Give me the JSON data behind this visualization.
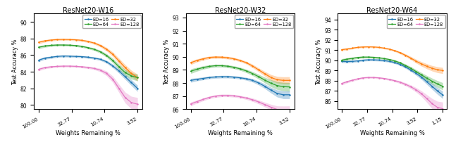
{
  "panels": [
    {
      "title": "ResNet20-W16",
      "ylabel": "Test Accuracy %",
      "xlabel": "Weights Remaining %",
      "xtick_positions": [
        0,
        1,
        2,
        3
      ],
      "xtick_labels": [
        "100.00",
        "32.77",
        "10.74",
        "3.52"
      ],
      "ylim": [
        79.5,
        91.0
      ],
      "yticks": [
        80,
        82,
        84,
        86,
        88,
        90
      ],
      "series": [
        {
          "label": "ED=16",
          "color": "#1f77b4",
          "mean": [
            85.4,
            85.65,
            85.75,
            85.85,
            85.9,
            85.88,
            85.85,
            85.82,
            85.75,
            85.65,
            85.5,
            85.2,
            84.7,
            84.1,
            83.4,
            82.7,
            82.0
          ],
          "std": [
            0.18,
            0.15,
            0.14,
            0.13,
            0.13,
            0.13,
            0.13,
            0.13,
            0.13,
            0.14,
            0.15,
            0.18,
            0.22,
            0.27,
            0.32,
            0.36,
            0.38
          ]
        },
        {
          "label": "ED=32",
          "color": "#ff7f0e",
          "mean": [
            87.55,
            87.72,
            87.82,
            87.88,
            87.9,
            87.88,
            87.85,
            87.78,
            87.65,
            87.45,
            87.15,
            86.7,
            86.1,
            85.3,
            84.5,
            83.8,
            83.3
          ],
          "std": [
            0.18,
            0.15,
            0.13,
            0.12,
            0.12,
            0.12,
            0.12,
            0.13,
            0.14,
            0.15,
            0.18,
            0.22,
            0.27,
            0.32,
            0.36,
            0.38,
            0.4
          ]
        },
        {
          "label": "ED=64",
          "color": "#2ca02c",
          "mean": [
            86.95,
            87.1,
            87.18,
            87.22,
            87.22,
            87.2,
            87.15,
            87.05,
            86.9,
            86.7,
            86.4,
            85.95,
            85.35,
            84.6,
            83.9,
            83.5,
            83.3
          ],
          "std": [
            0.18,
            0.15,
            0.13,
            0.12,
            0.12,
            0.12,
            0.12,
            0.13,
            0.14,
            0.15,
            0.18,
            0.22,
            0.27,
            0.32,
            0.36,
            0.38,
            0.4
          ]
        },
        {
          "label": "ED=128",
          "color": "#e377c2",
          "mean": [
            84.3,
            84.5,
            84.6,
            84.65,
            84.68,
            84.68,
            84.65,
            84.6,
            84.52,
            84.4,
            84.2,
            83.8,
            83.1,
            82.0,
            80.9,
            80.3,
            80.1
          ],
          "std": [
            0.18,
            0.15,
            0.13,
            0.12,
            0.12,
            0.12,
            0.12,
            0.13,
            0.14,
            0.15,
            0.2,
            0.28,
            0.38,
            0.5,
            0.65,
            0.75,
            0.8
          ]
        }
      ]
    },
    {
      "title": "ResNet20-W32",
      "ylabel": "Test Accuracy %",
      "xlabel": "Weights Remaining %",
      "xtick_positions": [
        0,
        1,
        2,
        3
      ],
      "xtick_labels": [
        "100.00",
        "32.77",
        "10.74",
        "3.52"
      ],
      "ylim": [
        86.0,
        93.3
      ],
      "yticks": [
        86,
        87,
        88,
        89,
        90,
        91,
        92,
        93
      ],
      "series": [
        {
          "label": "ED=16",
          "color": "#1f77b4",
          "mean": [
            88.2,
            88.28,
            88.35,
            88.42,
            88.46,
            88.48,
            88.48,
            88.45,
            88.4,
            88.32,
            88.2,
            88.0,
            87.75,
            87.45,
            87.2,
            87.1,
            87.1
          ],
          "std": [
            0.15,
            0.12,
            0.11,
            0.1,
            0.1,
            0.1,
            0.1,
            0.1,
            0.1,
            0.11,
            0.13,
            0.15,
            0.18,
            0.22,
            0.27,
            0.3,
            0.3
          ]
        },
        {
          "label": "ED=32",
          "color": "#ff7f0e",
          "mean": [
            89.55,
            89.72,
            89.85,
            89.95,
            89.98,
            89.97,
            89.93,
            89.85,
            89.72,
            89.55,
            89.3,
            89.0,
            88.7,
            88.42,
            88.25,
            88.2,
            88.2
          ],
          "std": [
            0.15,
            0.12,
            0.11,
            0.1,
            0.1,
            0.1,
            0.1,
            0.1,
            0.1,
            0.11,
            0.13,
            0.15,
            0.18,
            0.22,
            0.25,
            0.27,
            0.28
          ]
        },
        {
          "label": "ED=64",
          "color": "#2ca02c",
          "mean": [
            88.9,
            89.05,
            89.18,
            89.27,
            89.32,
            89.32,
            89.28,
            89.2,
            89.08,
            88.92,
            88.72,
            88.48,
            88.22,
            87.98,
            87.8,
            87.72,
            87.7
          ],
          "std": [
            0.18,
            0.15,
            0.13,
            0.12,
            0.11,
            0.11,
            0.11,
            0.11,
            0.12,
            0.13,
            0.15,
            0.18,
            0.22,
            0.27,
            0.3,
            0.32,
            0.33
          ]
        },
        {
          "label": "ED=128",
          "color": "#e377c2",
          "mean": [
            86.4,
            86.58,
            86.75,
            86.9,
            87.0,
            87.05,
            87.05,
            87.02,
            86.95,
            86.85,
            86.72,
            86.55,
            86.35,
            86.15,
            85.98,
            85.92,
            85.9
          ],
          "std": [
            0.15,
            0.12,
            0.11,
            0.1,
            0.1,
            0.1,
            0.1,
            0.1,
            0.1,
            0.11,
            0.13,
            0.15,
            0.18,
            0.22,
            0.27,
            0.32,
            0.35
          ]
        }
      ]
    },
    {
      "title": "ResNet20-W64",
      "ylabel": "Test Accuracy %",
      "xlabel": "Weights Remaining %",
      "xtick_positions": [
        0,
        1,
        2,
        3,
        4
      ],
      "xtick_labels": [
        "100.00",
        "32.77",
        "10.74",
        "3.52",
        "1.15"
      ],
      "ylim": [
        85.2,
        94.6
      ],
      "yticks": [
        86,
        87,
        88,
        89,
        90,
        91,
        92,
        93,
        94
      ],
      "series": [
        {
          "label": "ED=16",
          "color": "#1f77b4",
          "mean": [
            89.9,
            89.88,
            89.9,
            89.95,
            90.02,
            90.05,
            90.05,
            90.03,
            89.98,
            89.9,
            89.78,
            89.6,
            89.35,
            89.05,
            88.72,
            88.35,
            87.9,
            87.45,
            87.0,
            86.6
          ],
          "std": [
            0.15,
            0.13,
            0.12,
            0.11,
            0.1,
            0.1,
            0.1,
            0.1,
            0.1,
            0.1,
            0.11,
            0.12,
            0.14,
            0.16,
            0.19,
            0.22,
            0.26,
            0.3,
            0.33,
            0.36
          ]
        },
        {
          "label": "ED=32",
          "color": "#ff7f0e",
          "mean": [
            91.05,
            91.12,
            91.2,
            91.28,
            91.32,
            91.33,
            91.32,
            91.28,
            91.2,
            91.1,
            90.95,
            90.75,
            90.5,
            90.22,
            89.92,
            89.65,
            89.42,
            89.22,
            89.08,
            89.0
          ],
          "std": [
            0.12,
            0.1,
            0.09,
            0.08,
            0.08,
            0.08,
            0.08,
            0.08,
            0.08,
            0.09,
            0.1,
            0.12,
            0.14,
            0.16,
            0.19,
            0.22,
            0.25,
            0.27,
            0.29,
            0.3
          ]
        },
        {
          "label": "ED=64",
          "color": "#2ca02c",
          "mean": [
            90.02,
            90.12,
            90.2,
            90.28,
            90.32,
            90.32,
            90.3,
            90.25,
            90.18,
            90.08,
            89.95,
            89.75,
            89.5,
            89.22,
            88.9,
            88.58,
            88.25,
            87.95,
            87.68,
            87.45
          ],
          "std": [
            0.15,
            0.13,
            0.12,
            0.11,
            0.1,
            0.1,
            0.1,
            0.1,
            0.1,
            0.1,
            0.11,
            0.12,
            0.14,
            0.16,
            0.19,
            0.22,
            0.26,
            0.3,
            0.33,
            0.36
          ]
        },
        {
          "label": "ED=128",
          "color": "#e377c2",
          "mean": [
            87.72,
            87.9,
            88.05,
            88.18,
            88.28,
            88.32,
            88.32,
            88.28,
            88.22,
            88.12,
            88.0,
            87.85,
            87.65,
            87.4,
            87.1,
            86.72,
            86.25,
            85.75,
            85.38,
            85.25
          ],
          "std": [
            0.15,
            0.12,
            0.11,
            0.1,
            0.09,
            0.09,
            0.09,
            0.09,
            0.09,
            0.1,
            0.11,
            0.13,
            0.15,
            0.18,
            0.22,
            0.28,
            0.38,
            0.5,
            0.6,
            0.65
          ]
        }
      ]
    }
  ]
}
